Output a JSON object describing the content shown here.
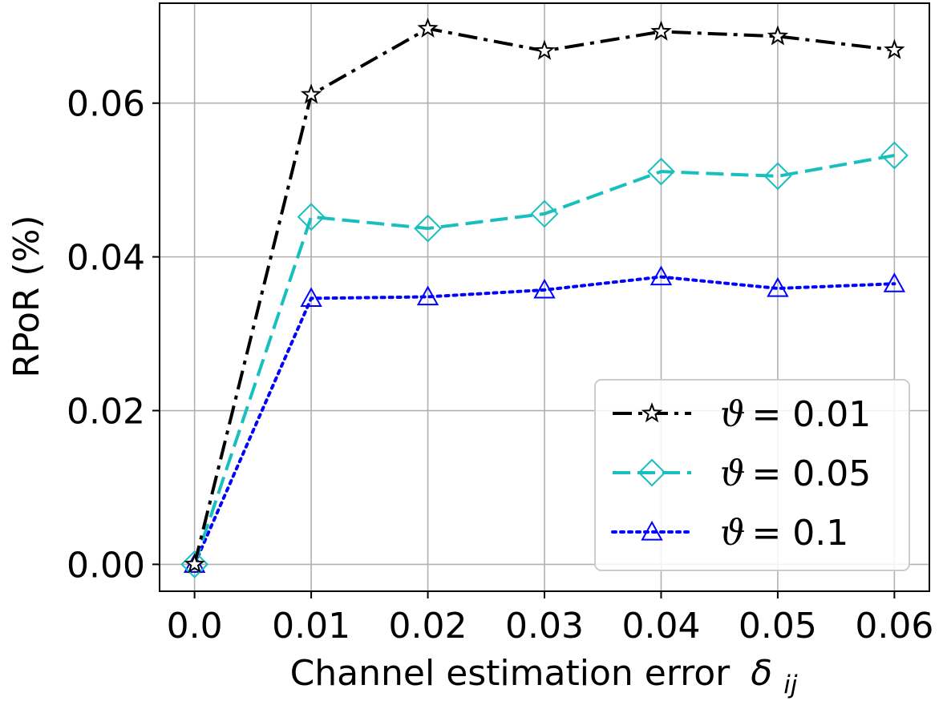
{
  "chart_data": {
    "type": "line",
    "xlabel": "Channel estimation error",
    "xlabel_symbol": "δ",
    "xlabel_subscript": "ij",
    "ylabel": "RPoR (%)",
    "x": [
      0.0,
      0.01,
      0.02,
      0.03,
      0.04,
      0.05,
      0.06
    ],
    "x_tick_labels": [
      "0.0",
      "0.01",
      "0.02",
      "0.03",
      "0.04",
      "0.05",
      "0.06"
    ],
    "y_tick_values": [
      0.0,
      0.02,
      0.04,
      0.06
    ],
    "y_tick_labels": [
      "0.00",
      "0.02",
      "0.04",
      "0.06"
    ],
    "xlim": [
      -0.003,
      0.063
    ],
    "ylim": [
      -0.0035,
      0.073
    ],
    "grid": true,
    "legend_position": "lower-right",
    "series": [
      {
        "name": "ϑ = 0.01",
        "name_symbol": "ϑ",
        "name_value": "= 0.01",
        "color": "#000000",
        "linestyle": "dashdot",
        "marker": "star",
        "values": [
          0.0,
          0.0611,
          0.0697,
          0.0668,
          0.0693,
          0.0687,
          0.0669
        ]
      },
      {
        "name": "ϑ = 0.05",
        "name_symbol": "ϑ",
        "name_value": "= 0.05",
        "color": "#17bfbf",
        "linestyle": "dashed",
        "marker": "diamond",
        "values": [
          0.0,
          0.0452,
          0.0437,
          0.0456,
          0.0511,
          0.0505,
          0.0532
        ]
      },
      {
        "name": "ϑ = 0.1",
        "name_symbol": "ϑ",
        "name_value": "= 0.1",
        "color": "#0000ff",
        "linestyle": "dotted",
        "marker": "triangle",
        "values": [
          0.0,
          0.0346,
          0.0348,
          0.0357,
          0.0374,
          0.0359,
          0.0365
        ]
      }
    ]
  }
}
